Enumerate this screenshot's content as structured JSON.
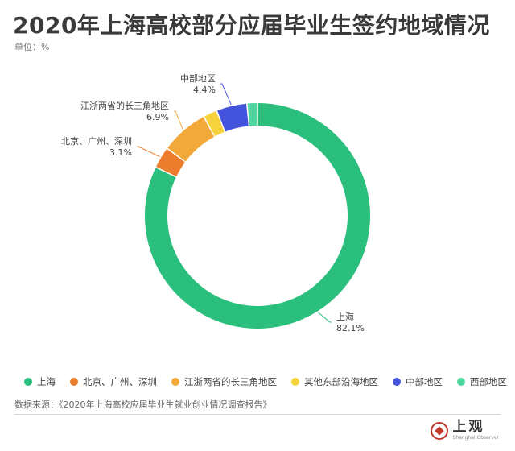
{
  "header": {
    "title": "2020年上海高校部分应届毕业生签约地域情况",
    "unit": "单位：%"
  },
  "chart_data": {
    "type": "pie",
    "donut": true,
    "legend_position": "bottom",
    "slices": [
      {
        "name": "上海",
        "value": 82.1,
        "color": "#2bbf7e"
      },
      {
        "name": "北京、广州、深圳",
        "value": 3.1,
        "color": "#ec7d2c"
      },
      {
        "name": "江浙两省的长三角地区",
        "value": 6.9,
        "color": "#f3a93a"
      },
      {
        "name": "其他东部沿海地区",
        "value": 2.0,
        "color": "#f6d33c"
      },
      {
        "name": "中部地区",
        "value": 4.4,
        "color": "#4453db"
      },
      {
        "name": "西部地区",
        "value": 1.5,
        "color": "#4fd6a0"
      }
    ],
    "labels": [
      {
        "slice": 0,
        "name": "上海",
        "value_text": "82.1%"
      },
      {
        "slice": 1,
        "name": "北京、广州、深圳",
        "value_text": "3.1%"
      },
      {
        "slice": 2,
        "name": "江浙两省的长三角地区",
        "value_text": "6.9%"
      },
      {
        "slice": 4,
        "name": "中部地区",
        "value_text": "4.4%"
      }
    ]
  },
  "footer": {
    "source": "数据来源：《2020年上海高校应届毕业生就业创业情况调查报告》",
    "logo_text": "上观",
    "logo_subtext": "Shanghai Observer",
    "logo_icon": "shanghai-observer-logo-icon"
  }
}
